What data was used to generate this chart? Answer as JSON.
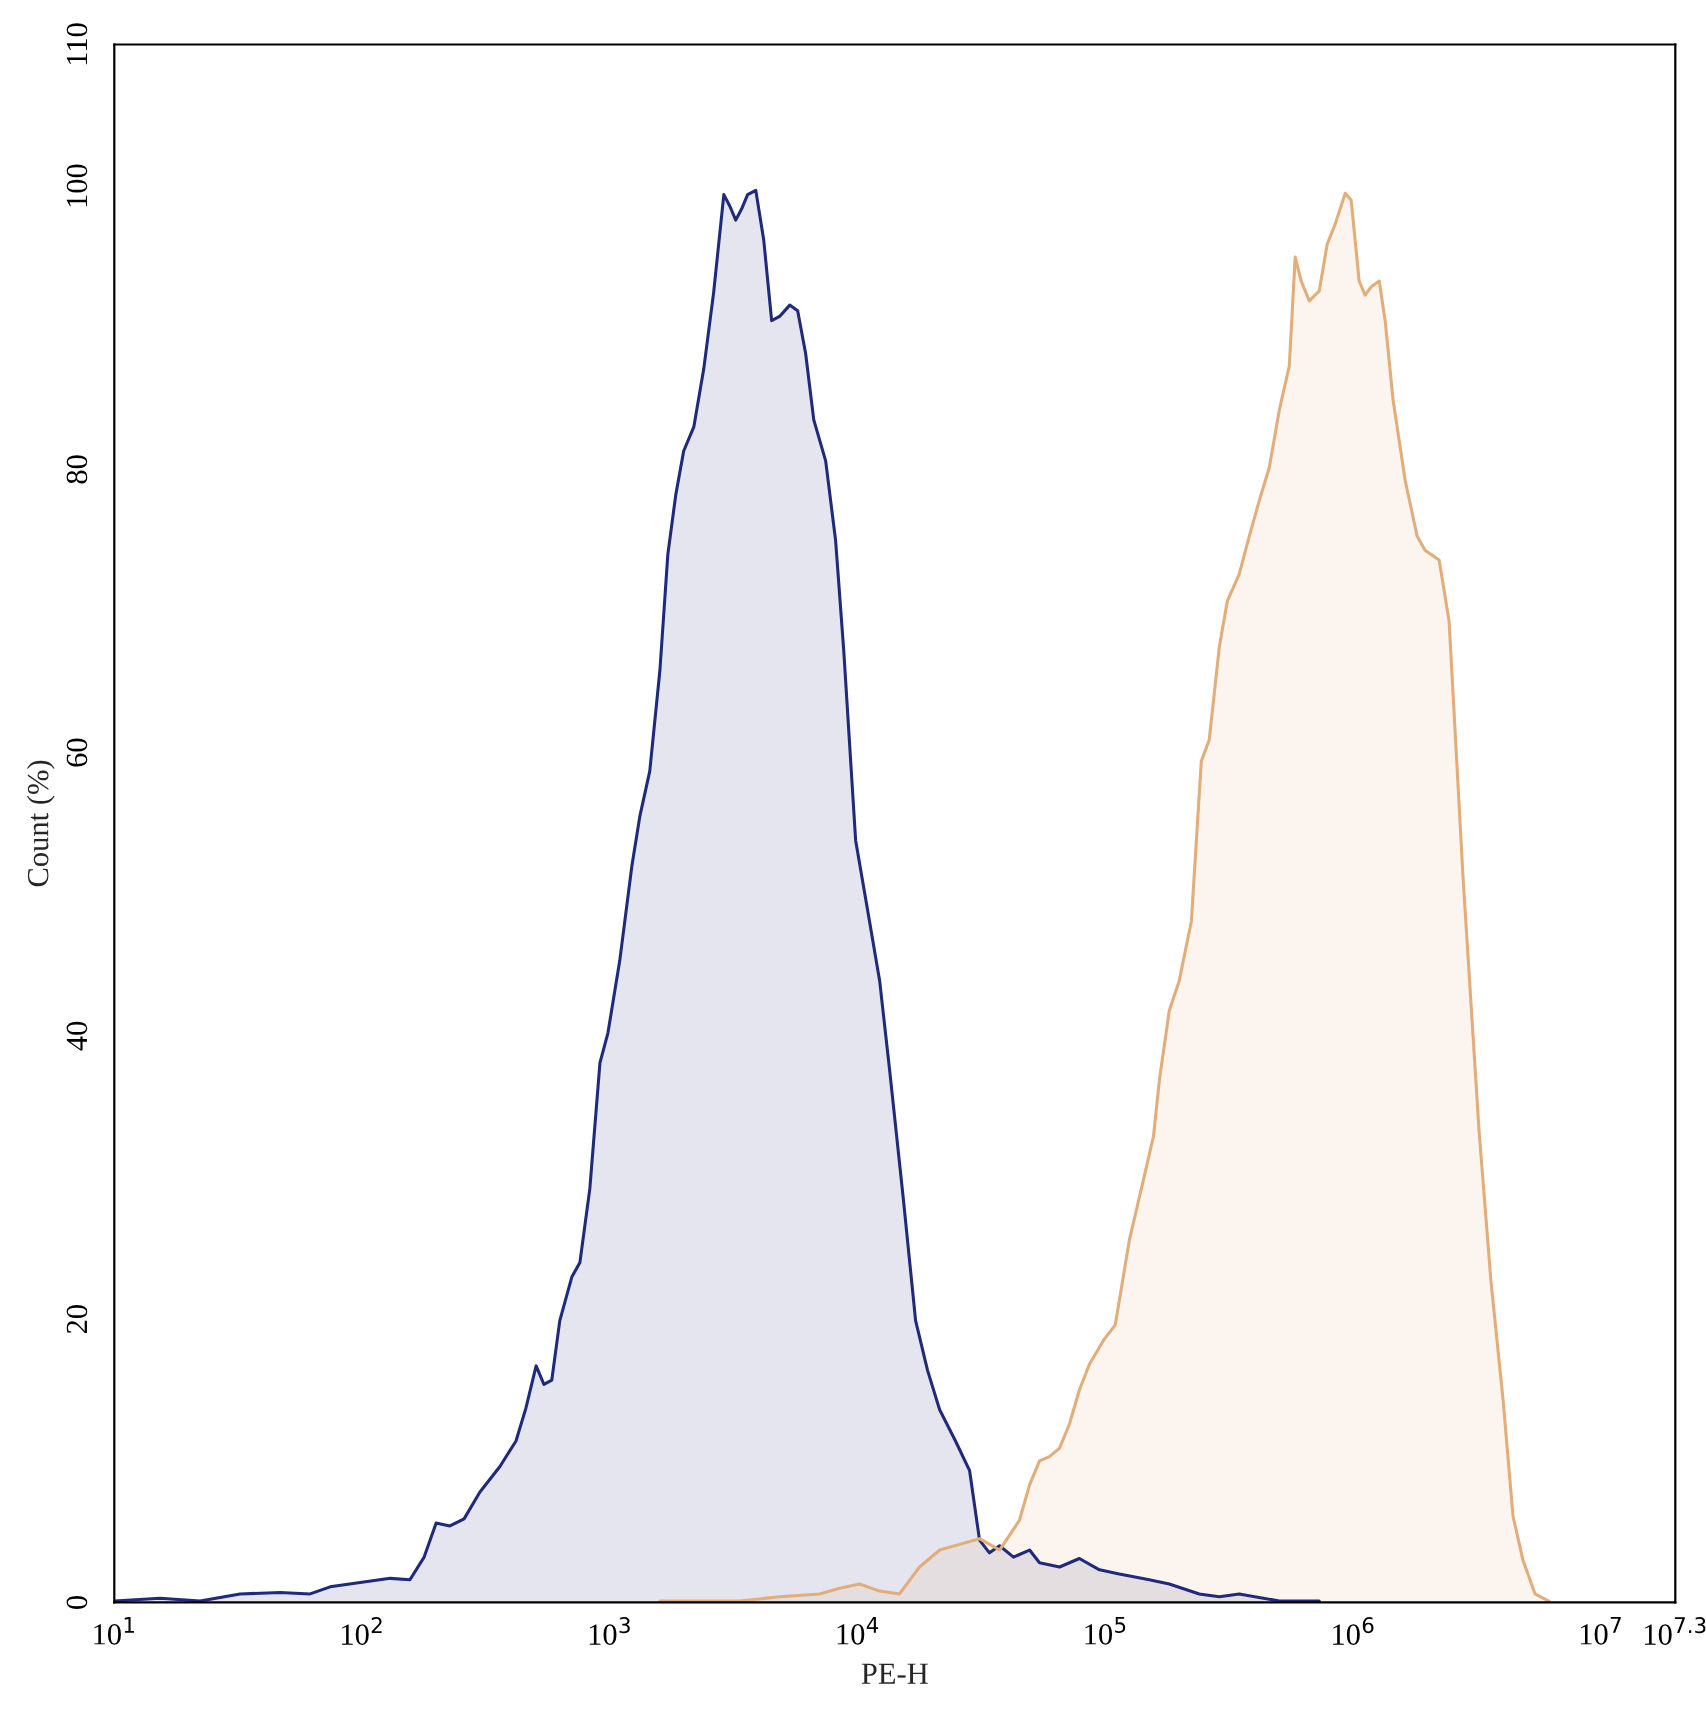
{
  "chart_data": {
    "type": "area",
    "xlabel": "PE-H",
    "ylabel": "Count (%)",
    "log": "x",
    "xlim": [
      10,
      19952623
    ],
    "xticks": [
      {
        "value": 10,
        "label": "10$^{1}$"
      },
      {
        "value": 100,
        "label": "10$^{2}$"
      },
      {
        "value": 1000,
        "label": "10$^{3}$"
      },
      {
        "value": 10000,
        "label": "10$^{4}$"
      },
      {
        "value": 100000,
        "label": "10$^{5}$"
      },
      {
        "value": 1000000,
        "label": "10$^{6}$"
      },
      {
        "value": 10000000,
        "label": "10$^{7}$"
      },
      {
        "value": 19952623,
        "label": "10$^{7.3}$"
      }
    ],
    "ylim": [
      0,
      110
    ],
    "yticks": [
      0,
      20,
      40,
      60,
      80,
      100,
      110
    ],
    "grid": false,
    "legend": false,
    "series": [
      {
        "color": "#1f2a7a",
        "x": [
          10,
          15.3,
          22.2,
          32.2,
          46.7,
          61.7,
          74.3,
          98.2,
          130,
          156,
          178,
          199,
          226,
          258,
          299,
          360,
          418,
          458,
          504,
          542,
          583,
          628,
          703,
          757,
          830,
          912,
          982,
          1096,
          1227,
          1321,
          1449,
          1592,
          1714,
          1845,
          1986,
          2182,
          2393,
          2624,
          2884,
          3048,
          3221,
          3404,
          3597,
          3882,
          4178,
          4498,
          4842,
          5321,
          5728,
          6166,
          6653,
          7430,
          8147,
          8790,
          9817,
          10965,
          12270,
          13460,
          15310,
          17140,
          19140,
          21430,
          24830,
          28310,
          31050,
          34040,
          37410,
          42560,
          49430,
          54200,
          65310,
          78520,
          94620,
          113800,
          150300,
          181100,
          239300,
          288400,
          346700,
          503500,
          729500
        ],
        "values": [
          0.1,
          0.3,
          0.1,
          0.6,
          0.7,
          0.6,
          1.1,
          1.4,
          1.7,
          1.6,
          3.2,
          5.6,
          5.4,
          5.9,
          7.8,
          9.6,
          11.4,
          13.7,
          16.7,
          15.4,
          15.7,
          19.9,
          23.0,
          24.0,
          29.2,
          38.1,
          40.2,
          45.3,
          52.0,
          55.5,
          58.7,
          65.8,
          74.0,
          78.2,
          81.3,
          83.0,
          87.1,
          92.5,
          99.4,
          98.6,
          97.6,
          98.4,
          99.4,
          99.7,
          96.2,
          90.5,
          90.8,
          91.6,
          91.2,
          88.2,
          83.5,
          80.6,
          75.0,
          67.2,
          53.8,
          48.9,
          43.9,
          37.6,
          28.4,
          19.9,
          16.4,
          13.6,
          11.4,
          9.3,
          4.4,
          3.5,
          4.0,
          3.2,
          3.7,
          2.8,
          2.5,
          3.1,
          2.3,
          2.0,
          1.6,
          1.3,
          0.6,
          0.4,
          0.6,
          0.1,
          0.1
        ]
      },
      {
        "color": "#e3ad7a",
        "x": [
          1592,
          3342,
          4842,
          7031,
          8453,
          10190,
          12270,
          14760,
          17780,
          21430,
          25760,
          31050,
          37410,
          44980,
          49430,
          54200,
          59430,
          65310,
          71610,
          78520,
          86100,
          98170,
          109600,
          125000,
          142200,
          156300,
          165200,
          181100,
          198600,
          222300,
          243800,
          262400,
          288400,
          310500,
          346700,
          381100,
          417800,
          458100,
          503500,
          552100,
          583400,
          616600,
          665300,
          729500,
          785200,
          845300,
          929000,
          981700,
          1057000,
          1117000,
          1183000,
          1274000,
          1346000,
          1449000,
          1622000,
          1811000,
          1950000,
          2223000,
          2438000,
          2780000,
          3221000,
          3597000,
          4027000,
          4416000,
          4842000,
          5420000,
          6166000
        ],
        "values": [
          0.1,
          0.1,
          0.4,
          0.6,
          1.0,
          1.3,
          0.8,
          0.6,
          2.5,
          3.7,
          4.1,
          4.5,
          3.7,
          5.8,
          8.3,
          10.0,
          10.3,
          10.9,
          12.6,
          15.0,
          16.8,
          18.5,
          19.6,
          25.6,
          29.8,
          32.9,
          36.9,
          41.8,
          43.9,
          48.1,
          59.4,
          60.9,
          67.5,
          70.7,
          72.6,
          75.3,
          77.8,
          80.1,
          84.2,
          87.3,
          95.0,
          93.3,
          91.9,
          92.6,
          95.9,
          97.3,
          99.5,
          99.0,
          93.3,
          92.3,
          92.9,
          93.3,
          90.5,
          84.9,
          79.2,
          75.3,
          74.3,
          73.6,
          69.3,
          51.0,
          33.3,
          22.7,
          14.3,
          6.1,
          3.0,
          0.6,
          0.1
        ]
      }
    ]
  }
}
